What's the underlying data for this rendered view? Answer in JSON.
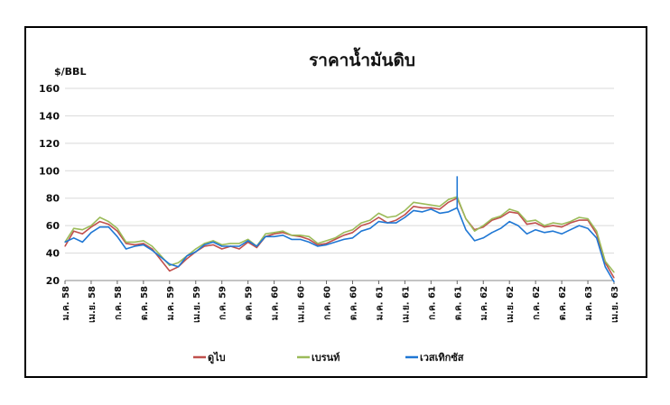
{
  "chart_data": {
    "type": "line",
    "title": "ราคาน้ำมันดิบ",
    "ylabel": "$/BBL",
    "xlabel": "",
    "ylim": [
      20,
      160
    ],
    "yticks": [
      20,
      40,
      60,
      80,
      100,
      120,
      140,
      160
    ],
    "grid": true,
    "legend_position": "bottom",
    "x_tick_labels": [
      "ม.ค. 58",
      "เม.ย. 58",
      "ก.ค. 58",
      "ต.ค. 58",
      "ม.ค. 59",
      "เม.ย. 59",
      "ก.ค. 59",
      "ต.ค. 59",
      "ม.ค. 60",
      "เม.ย. 60",
      "ก.ค. 60",
      "ต.ค. 60",
      "ม.ค. 61",
      "เม.ย. 61",
      "ก.ค. 61",
      "ต.ค. 61",
      "ม.ค. 62",
      "เม.ย. 62",
      "ก.ค. 62",
      "ต.ค. 62",
      "ม.ค. 63",
      "เม.ย. 63"
    ],
    "x": [
      "ม.ค. 58",
      "ก.พ. 58",
      "มี.ค. 58",
      "เม.ย. 58",
      "พ.ค. 58",
      "มิ.ย. 58",
      "ก.ค. 58",
      "ส.ค. 58",
      "ก.ย. 58",
      "ต.ค. 58",
      "พ.ย. 58",
      "ธ.ค. 58",
      "ม.ค. 59",
      "ก.พ. 59",
      "มี.ค. 59",
      "เม.ย. 59",
      "พ.ค. 59",
      "มิ.ย. 59",
      "ก.ค. 59",
      "ส.ค. 59",
      "ก.ย. 59",
      "ต.ค. 59",
      "พ.ย. 59",
      "ธ.ค. 59",
      "ม.ค. 60",
      "ก.พ. 60",
      "มี.ค. 60",
      "เม.ย. 60",
      "พ.ค. 60",
      "มิ.ย. 60",
      "ก.ค. 60",
      "ส.ค. 60",
      "ก.ย. 60",
      "ต.ค. 60",
      "พ.ย. 60",
      "ธ.ค. 60",
      "ม.ค. 61",
      "ก.พ. 61",
      "มี.ค. 61",
      "เม.ย. 61",
      "พ.ค. 61",
      "มิ.ย. 61",
      "ก.ค. 61",
      "ส.ค. 61",
      "ก.ย. 61",
      "ต.ค. 61",
      "พ.ย. 61",
      "ธ.ค. 61",
      "ม.ค. 62",
      "ก.พ. 62",
      "มี.ค. 62",
      "เม.ย. 62",
      "พ.ค. 62",
      "มิ.ย. 62",
      "ก.ค. 62",
      "ส.ค. 62",
      "ก.ย. 62",
      "ต.ค. 62",
      "พ.ย. 62",
      "ธ.ค. 62",
      "ม.ค. 63",
      "ก.พ. 63",
      "มี.ค. 63",
      "เม.ย. 63"
    ],
    "series": [
      {
        "name": "ดูไบ",
        "color": "#c0504d",
        "values": [
          45,
          56,
          54,
          59,
          63,
          61,
          56,
          47,
          46,
          47,
          43,
          35,
          27,
          30,
          36,
          41,
          45,
          46,
          43,
          45,
          43,
          48,
          44,
          52,
          54,
          55,
          53,
          52,
          50,
          46,
          47,
          50,
          53,
          55,
          60,
          62,
          66,
          62,
          64,
          68,
          74,
          73,
          73,
          72,
          77,
          80,
          65,
          57,
          59,
          64,
          66,
          70,
          69,
          61,
          62,
          59,
          60,
          59,
          62,
          64,
          64,
          54,
          33,
          22
        ]
      },
      {
        "name": "เบรนท์",
        "color": "#9bbb59",
        "values": [
          48,
          58,
          57,
          60,
          66,
          63,
          58,
          48,
          48,
          49,
          45,
          38,
          31,
          33,
          38,
          43,
          47,
          49,
          46,
          47,
          47,
          50,
          45,
          54,
          55,
          56,
          53,
          53,
          52,
          47,
          49,
          51,
          55,
          57,
          62,
          64,
          69,
          66,
          67,
          71,
          77,
          76,
          75,
          74,
          79,
          81,
          65,
          56,
          60,
          65,
          67,
          72,
          70,
          63,
          64,
          60,
          62,
          61,
          63,
          66,
          65,
          56,
          34,
          26
        ]
      },
      {
        "name": "เวสเทิกซัส",
        "color": "#1f77d4",
        "values": [
          48,
          51,
          48,
          55,
          59,
          59,
          52,
          43,
          45,
          46,
          42,
          37,
          32,
          30,
          38,
          41,
          46,
          48,
          45,
          45,
          45,
          49,
          45,
          52,
          52,
          53,
          50,
          50,
          48,
          45,
          46,
          48,
          50,
          51,
          56,
          58,
          63,
          62,
          62,
          66,
          71,
          70,
          72,
          69,
          70,
          73,
          57,
          49,
          51,
          55,
          58,
          63,
          60,
          54,
          57,
          55,
          56,
          54,
          57,
          60,
          58,
          51,
          30,
          19
        ]
      }
    ],
    "spike": {
      "series": "เวสเทิกซัส",
      "x": "ต.ค. 61",
      "value": 96
    }
  },
  "legend": [
    {
      "label": "ดูไบ",
      "color": "#c0504d"
    },
    {
      "label": "เบรนท์",
      "color": "#9bbb59"
    },
    {
      "label": "เวสเทิกซัส",
      "color": "#1f77d4"
    }
  ]
}
